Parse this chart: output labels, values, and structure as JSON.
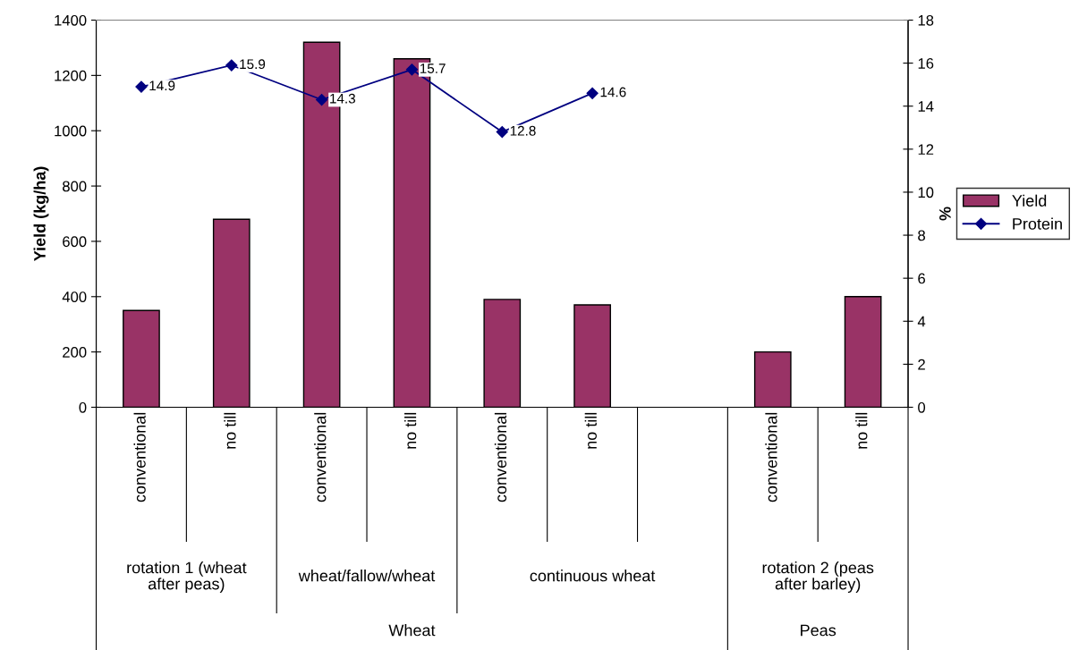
{
  "chart_data": {
    "type": "bar",
    "ylabel": "Yield (kg/ha)",
    "y2label": "%",
    "categories": [
      "conventional",
      "no till",
      "conventional",
      "no till",
      "conventional",
      "no till",
      null,
      "conventional",
      "no till"
    ],
    "series": [
      {
        "name": "Yield",
        "color": "#993366",
        "values": [
          350,
          680,
          1320,
          1260,
          390,
          370,
          null,
          200,
          400
        ]
      },
      {
        "name": "Protein",
        "type": "line",
        "axis": "y2",
        "color": "#000080",
        "marker": "diamond",
        "line_style": "solid",
        "values": [
          14.9,
          15.9,
          14.3,
          15.7,
          12.8,
          14.6,
          null,
          null,
          null
        ],
        "value_labels": [
          "14.9",
          "15.9",
          "14.3",
          "15.7",
          "12.8",
          "14.6",
          null,
          null,
          null
        ]
      }
    ],
    "ylim": [
      0,
      1400
    ],
    "yticks": [
      0,
      200,
      400,
      600,
      800,
      1000,
      1200,
      1400
    ],
    "y2lim": [
      0,
      18
    ],
    "y2ticks": [
      0,
      2,
      4,
      6,
      8,
      10,
      12,
      14,
      16,
      18
    ],
    "grid": false,
    "legend": "right",
    "annotations": [
      "rotation 1 (wheat\nafter peas)",
      "wheat/fallow/wheat",
      "continuous wheat",
      "rotation 2 (peas\nafter barley)",
      "Wheat",
      "Peas"
    ]
  }
}
